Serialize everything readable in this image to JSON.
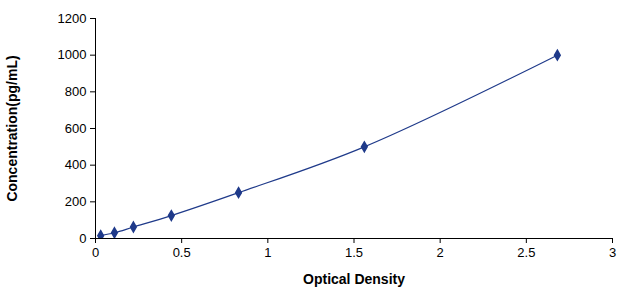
{
  "chart_data": {
    "type": "line",
    "x_label": "Optical Density",
    "y_label": "Concentration(pg/mL)",
    "x": [
      0.03,
      0.11,
      0.22,
      0.44,
      0.83,
      1.56,
      2.68
    ],
    "values": [
      15.6,
      31.25,
      62.5,
      125,
      250,
      500,
      1000
    ],
    "color": "#1f3a8a",
    "marker": "diamond",
    "line_style": "solid",
    "xlim": [
      0,
      3
    ],
    "xticks": [
      0,
      0.5,
      1,
      1.5,
      2,
      2.5,
      3
    ],
    "ylim": [
      0,
      1200
    ],
    "yticks": [
      0,
      200,
      400,
      600,
      800,
      1000,
      1200
    ],
    "grid": false
  }
}
